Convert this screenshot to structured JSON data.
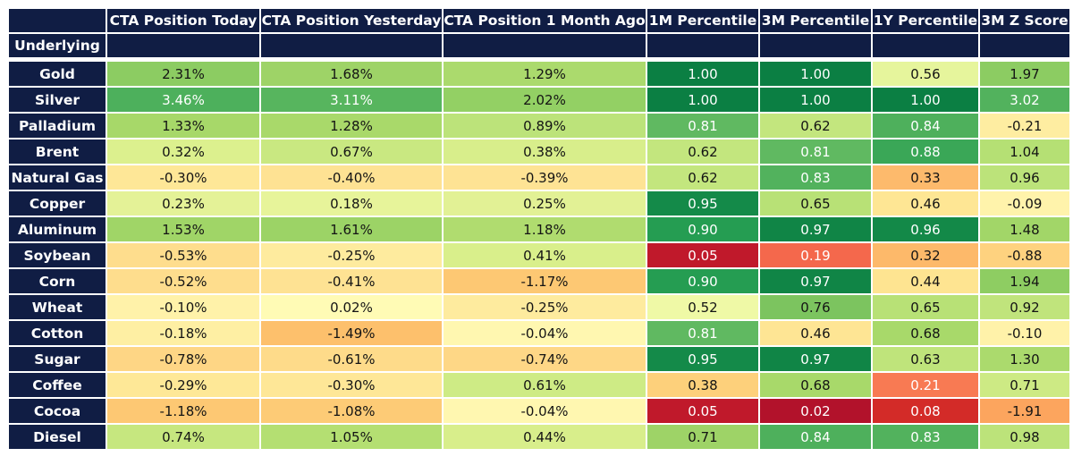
{
  "colors": {
    "header_bg": "#101d44",
    "header_fg": "#ffffff",
    "grid": "#ffffff",
    "cell_fg_dark": "#141414",
    "cell_fg_light": "#ffffff"
  },
  "table": {
    "corner": "",
    "row_header_label": "Underlying",
    "columns": [
      "CTA Position Today",
      "CTA Position Yesterday",
      "CTA Position 1 Month Ago",
      "1M Percentile",
      "3M Percentile",
      "1Y Percentile",
      "3M Z Score"
    ],
    "rows": [
      {
        "label": "Gold",
        "cells": [
          {
            "v": "2.31%",
            "bg": "#8ccc62",
            "fg": "dark"
          },
          {
            "v": "1.68%",
            "bg": "#9ed367",
            "fg": "dark"
          },
          {
            "v": "1.29%",
            "bg": "#abda6d",
            "fg": "dark"
          },
          {
            "v": "1.00",
            "bg": "#0b7f43",
            "fg": "light"
          },
          {
            "v": "1.00",
            "bg": "#0b7f43",
            "fg": "light"
          },
          {
            "v": "0.56",
            "bg": "#e6f59c",
            "fg": "dark"
          },
          {
            "v": "1.97",
            "bg": "#8ccc62",
            "fg": "dark"
          }
        ]
      },
      {
        "label": "Silver",
        "cells": [
          {
            "v": "3.46%",
            "bg": "#4db05c",
            "fg": "light"
          },
          {
            "v": "3.11%",
            "bg": "#57b55e",
            "fg": "light"
          },
          {
            "v": "2.02%",
            "bg": "#93d064",
            "fg": "dark"
          },
          {
            "v": "1.00",
            "bg": "#0b7f43",
            "fg": "light"
          },
          {
            "v": "1.00",
            "bg": "#0b7f43",
            "fg": "light"
          },
          {
            "v": "1.00",
            "bg": "#0b7f43",
            "fg": "light"
          },
          {
            "v": "3.02",
            "bg": "#52b25d",
            "fg": "light"
          }
        ]
      },
      {
        "label": "Palladium",
        "cells": [
          {
            "v": "1.33%",
            "bg": "#a7d869",
            "fg": "dark"
          },
          {
            "v": "1.28%",
            "bg": "#a9d96a",
            "fg": "dark"
          },
          {
            "v": "0.89%",
            "bg": "#bce37a",
            "fg": "dark"
          },
          {
            "v": "0.81",
            "bg": "#60b961",
            "fg": "light"
          },
          {
            "v": "0.62",
            "bg": "#c3e67e",
            "fg": "dark"
          },
          {
            "v": "0.84",
            "bg": "#4eb05c",
            "fg": "light"
          },
          {
            "v": "-0.21",
            "bg": "#feeda1",
            "fg": "dark"
          }
        ]
      },
      {
        "label": "Brent",
        "cells": [
          {
            "v": "0.32%",
            "bg": "#dcf08e",
            "fg": "dark"
          },
          {
            "v": "0.67%",
            "bg": "#c9e881",
            "fg": "dark"
          },
          {
            "v": "0.38%",
            "bg": "#d8ee8b",
            "fg": "dark"
          },
          {
            "v": "0.62",
            "bg": "#c3e67e",
            "fg": "dark"
          },
          {
            "v": "0.81",
            "bg": "#60b961",
            "fg": "light"
          },
          {
            "v": "0.88",
            "bg": "#3aa757",
            "fg": "light"
          },
          {
            "v": "1.04",
            "bg": "#b5e074",
            "fg": "dark"
          }
        ]
      },
      {
        "label": "Natural Gas",
        "cells": [
          {
            "v": "-0.30%",
            "bg": "#fee797",
            "fg": "dark"
          },
          {
            "v": "-0.40%",
            "bg": "#fee293",
            "fg": "dark"
          },
          {
            "v": "-0.39%",
            "bg": "#fee394",
            "fg": "dark"
          },
          {
            "v": "0.62",
            "bg": "#c3e67e",
            "fg": "dark"
          },
          {
            "v": "0.83",
            "bg": "#52b25d",
            "fg": "light"
          },
          {
            "v": "0.33",
            "bg": "#fdba6c",
            "fg": "dark"
          },
          {
            "v": "0.96",
            "bg": "#bce37a",
            "fg": "dark"
          }
        ]
      },
      {
        "label": "Copper",
        "cells": [
          {
            "v": "0.23%",
            "bg": "#e4f297",
            "fg": "dark"
          },
          {
            "v": "0.18%",
            "bg": "#e7f49a",
            "fg": "dark"
          },
          {
            "v": "0.25%",
            "bg": "#e2f195",
            "fg": "dark"
          },
          {
            "v": "0.95",
            "bg": "#148a49",
            "fg": "light"
          },
          {
            "v": "0.65",
            "bg": "#b8e176",
            "fg": "dark"
          },
          {
            "v": "0.46",
            "bg": "#fee694",
            "fg": "dark"
          },
          {
            "v": "-0.09",
            "bg": "#fff3ab",
            "fg": "dark"
          }
        ]
      },
      {
        "label": "Aluminum",
        "cells": [
          {
            "v": "1.53%",
            "bg": "#a0d567",
            "fg": "dark"
          },
          {
            "v": "1.61%",
            "bg": "#9cd366",
            "fg": "dark"
          },
          {
            "v": "1.18%",
            "bg": "#b0dc6f",
            "fg": "dark"
          },
          {
            "v": "0.90",
            "bg": "#259d52",
            "fg": "light"
          },
          {
            "v": "0.97",
            "bg": "#108546",
            "fg": "light"
          },
          {
            "v": "0.96",
            "bg": "#138948",
            "fg": "light"
          },
          {
            "v": "1.48",
            "bg": "#a2d668",
            "fg": "dark"
          }
        ]
      },
      {
        "label": "Soybean",
        "cells": [
          {
            "v": "-0.53%",
            "bg": "#fedd8d",
            "fg": "dark"
          },
          {
            "v": "-0.25%",
            "bg": "#feeb9e",
            "fg": "dark"
          },
          {
            "v": "0.41%",
            "bg": "#d9ef8b",
            "fg": "dark"
          },
          {
            "v": "0.05",
            "bg": "#c0192b",
            "fg": "light"
          },
          {
            "v": "0.19",
            "bg": "#f4684c",
            "fg": "light"
          },
          {
            "v": "0.32",
            "bg": "#fdb96a",
            "fg": "dark"
          },
          {
            "v": "-0.88",
            "bg": "#fed27f",
            "fg": "dark"
          }
        ]
      },
      {
        "label": "Corn",
        "cells": [
          {
            "v": "-0.52%",
            "bg": "#fedd8d",
            "fg": "dark"
          },
          {
            "v": "-0.41%",
            "bg": "#fee293",
            "fg": "dark"
          },
          {
            "v": "-1.17%",
            "bg": "#fdc873",
            "fg": "dark"
          },
          {
            "v": "0.90",
            "bg": "#259d52",
            "fg": "light"
          },
          {
            "v": "0.97",
            "bg": "#108546",
            "fg": "light"
          },
          {
            "v": "0.44",
            "bg": "#fee491",
            "fg": "dark"
          },
          {
            "v": "1.94",
            "bg": "#8ecd62",
            "fg": "dark"
          }
        ]
      },
      {
        "label": "Wheat",
        "cells": [
          {
            "v": "-0.10%",
            "bg": "#fff2a9",
            "fg": "dark"
          },
          {
            "v": "0.02%",
            "bg": "#fffbb5",
            "fg": "dark"
          },
          {
            "v": "-0.25%",
            "bg": "#feeb9e",
            "fg": "dark"
          },
          {
            "v": "0.52",
            "bg": "#eff9a6",
            "fg": "dark"
          },
          {
            "v": "0.76",
            "bg": "#7cc45f",
            "fg": "dark"
          },
          {
            "v": "0.65",
            "bg": "#b8e176",
            "fg": "dark"
          },
          {
            "v": "0.92",
            "bg": "#c0e47c",
            "fg": "dark"
          }
        ]
      },
      {
        "label": "Cotton",
        "cells": [
          {
            "v": "-0.18%",
            "bg": "#feefa3",
            "fg": "dark"
          },
          {
            "v": "-1.49%",
            "bg": "#fdc06c",
            "fg": "dark"
          },
          {
            "v": "-0.04%",
            "bg": "#fff7b0",
            "fg": "dark"
          },
          {
            "v": "0.81",
            "bg": "#60b961",
            "fg": "light"
          },
          {
            "v": "0.46",
            "bg": "#fee594",
            "fg": "dark"
          },
          {
            "v": "0.68",
            "bg": "#a8d96a",
            "fg": "dark"
          },
          {
            "v": "-0.10",
            "bg": "#fff2a9",
            "fg": "dark"
          }
        ]
      },
      {
        "label": "Sugar",
        "cells": [
          {
            "v": "-0.78%",
            "bg": "#fed685",
            "fg": "dark"
          },
          {
            "v": "-0.61%",
            "bg": "#fedb8a",
            "fg": "dark"
          },
          {
            "v": "-0.74%",
            "bg": "#fed786",
            "fg": "dark"
          },
          {
            "v": "0.95",
            "bg": "#148a49",
            "fg": "light"
          },
          {
            "v": "0.97",
            "bg": "#108546",
            "fg": "light"
          },
          {
            "v": "0.63",
            "bg": "#bfe47b",
            "fg": "dark"
          },
          {
            "v": "1.30",
            "bg": "#abda6d",
            "fg": "dark"
          }
        ]
      },
      {
        "label": "Coffee",
        "cells": [
          {
            "v": "-0.29%",
            "bg": "#fee897",
            "fg": "dark"
          },
          {
            "v": "-0.30%",
            "bg": "#fee797",
            "fg": "dark"
          },
          {
            "v": "0.61%",
            "bg": "#ceeb85",
            "fg": "dark"
          },
          {
            "v": "0.38",
            "bg": "#fdd07b",
            "fg": "dark"
          },
          {
            "v": "0.68",
            "bg": "#a8d96a",
            "fg": "dark"
          },
          {
            "v": "0.21",
            "bg": "#f87a53",
            "fg": "light"
          },
          {
            "v": "0.71",
            "bg": "#cdea84",
            "fg": "dark"
          }
        ]
      },
      {
        "label": "Cocoa",
        "cells": [
          {
            "v": "-1.18%",
            "bg": "#fdc873",
            "fg": "dark"
          },
          {
            "v": "-1.08%",
            "bg": "#fdcb76",
            "fg": "dark"
          },
          {
            "v": "-0.04%",
            "bg": "#fff7b0",
            "fg": "dark"
          },
          {
            "v": "0.05",
            "bg": "#c0192b",
            "fg": "light"
          },
          {
            "v": "0.02",
            "bg": "#b2122b",
            "fg": "light"
          },
          {
            "v": "0.08",
            "bg": "#d32b28",
            "fg": "light"
          },
          {
            "v": "-1.91",
            "bg": "#fca55e",
            "fg": "dark"
          }
        ]
      },
      {
        "label": "Diesel",
        "cells": [
          {
            "v": "0.74%",
            "bg": "#c6e77f",
            "fg": "dark"
          },
          {
            "v": "1.05%",
            "bg": "#b4df72",
            "fg": "dark"
          },
          {
            "v": "0.44%",
            "bg": "#d8ee8b",
            "fg": "dark"
          },
          {
            "v": "0.71",
            "bg": "#9ed367",
            "fg": "dark"
          },
          {
            "v": "0.84",
            "bg": "#4eb05c",
            "fg": "light"
          },
          {
            "v": "0.83",
            "bg": "#52b25d",
            "fg": "light"
          },
          {
            "v": "0.98",
            "bg": "#bce37a",
            "fg": "dark"
          }
        ]
      }
    ]
  },
  "chart_data": {
    "type": "heatmap",
    "row_label_header": "Underlying",
    "columns": [
      "CTA Position Today",
      "CTA Position Yesterday",
      "CTA Position 1 Month Ago",
      "1M Percentile",
      "3M Percentile",
      "1Y Percentile",
      "3M Z Score"
    ],
    "rows": [
      "Gold",
      "Silver",
      "Palladium",
      "Brent",
      "Natural Gas",
      "Copper",
      "Aluminum",
      "Soybean",
      "Corn",
      "Wheat",
      "Cotton",
      "Sugar",
      "Coffee",
      "Cocoa",
      "Diesel"
    ],
    "values": [
      [
        2.31,
        1.68,
        1.29,
        1.0,
        1.0,
        0.56,
        1.97
      ],
      [
        3.46,
        3.11,
        2.02,
        1.0,
        1.0,
        1.0,
        3.02
      ],
      [
        1.33,
        1.28,
        0.89,
        0.81,
        0.62,
        0.84,
        -0.21
      ],
      [
        0.32,
        0.67,
        0.38,
        0.62,
        0.81,
        0.88,
        1.04
      ],
      [
        -0.3,
        -0.4,
        -0.39,
        0.62,
        0.83,
        0.33,
        0.96
      ],
      [
        0.23,
        0.18,
        0.25,
        0.95,
        0.65,
        0.46,
        -0.09
      ],
      [
        1.53,
        1.61,
        1.18,
        0.9,
        0.97,
        0.96,
        1.48
      ],
      [
        -0.53,
        -0.25,
        0.41,
        0.05,
        0.19,
        0.32,
        -0.88
      ],
      [
        -0.52,
        -0.41,
        -1.17,
        0.9,
        0.97,
        0.44,
        1.94
      ],
      [
        -0.1,
        0.02,
        -0.25,
        0.52,
        0.76,
        0.65,
        0.92
      ],
      [
        -0.18,
        -1.49,
        -0.04,
        0.81,
        0.46,
        0.68,
        -0.1
      ],
      [
        -0.78,
        -0.61,
        -0.74,
        0.95,
        0.97,
        0.63,
        1.3
      ],
      [
        -0.29,
        -0.3,
        0.61,
        0.38,
        0.68,
        0.21,
        0.71
      ],
      [
        -1.18,
        -1.08,
        -0.04,
        0.05,
        0.02,
        0.08,
        -1.91
      ],
      [
        0.74,
        1.05,
        0.44,
        0.71,
        0.84,
        0.83,
        0.98
      ]
    ],
    "value_units": [
      "%",
      "%",
      "%",
      "fraction",
      "fraction",
      "fraction",
      "z-score"
    ],
    "colormap": "red-yellow-green",
    "legend_position": "none",
    "grid": false
  }
}
